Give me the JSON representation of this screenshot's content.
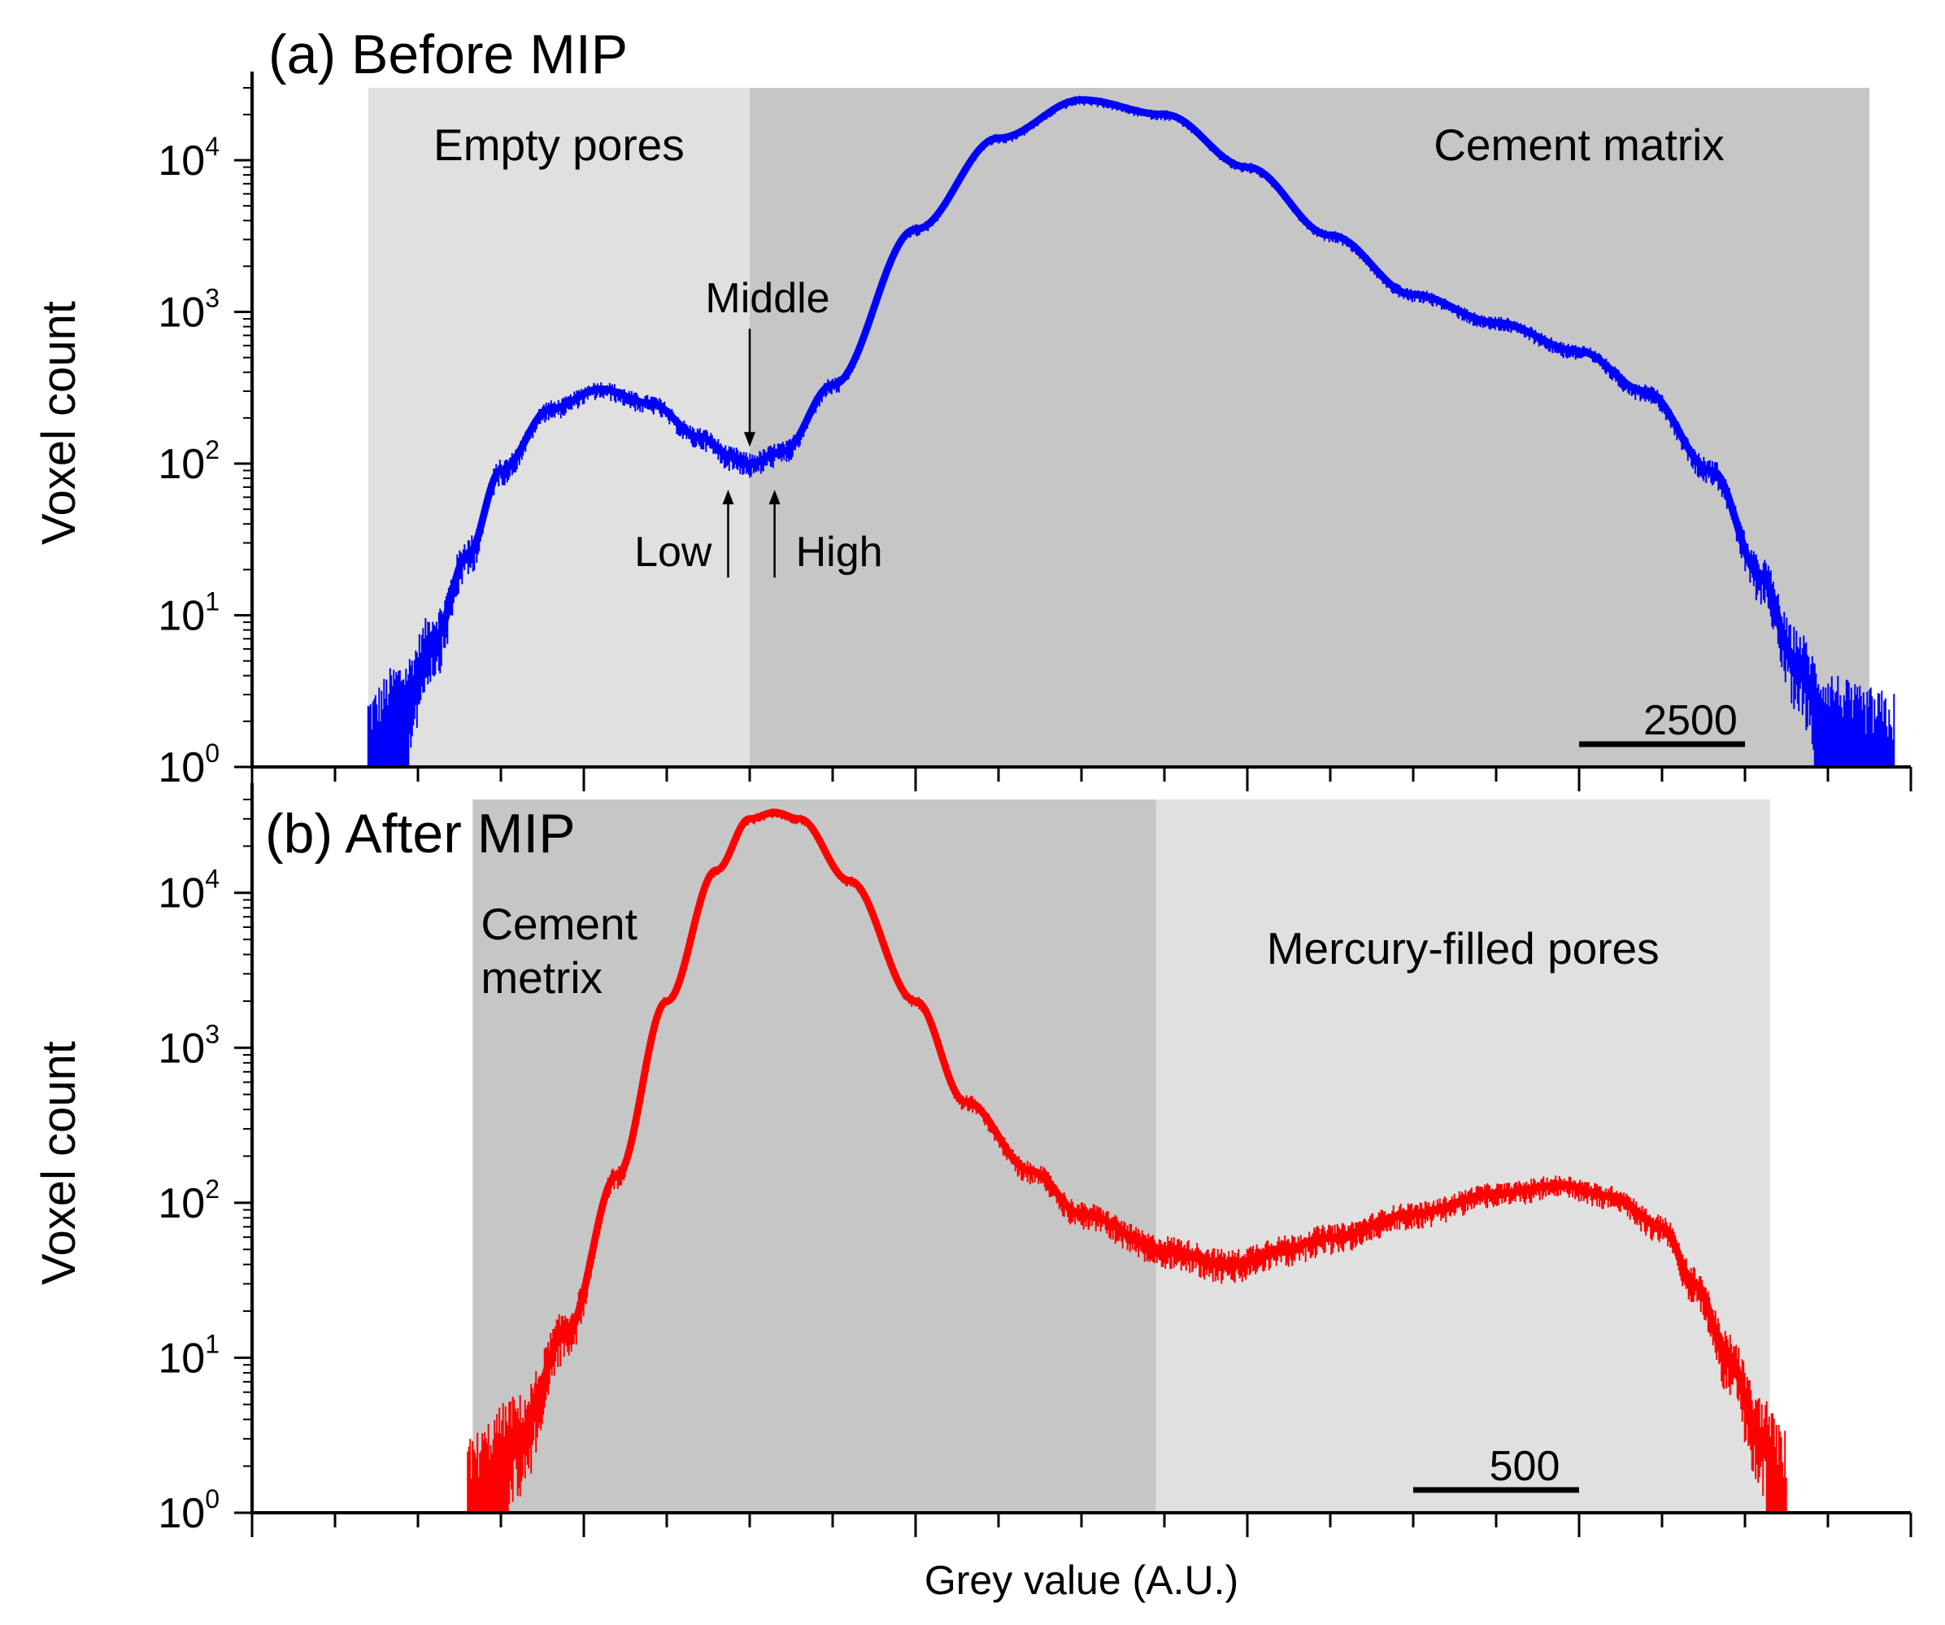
{
  "chart_data": {
    "xlabel": "Grey value (A.U.)",
    "panels": [
      {
        "id": "a",
        "type": "line",
        "title": "(a) Before MIP",
        "ylabel": "Voxel count",
        "yscale": "log",
        "ylim": [
          1,
          30000
        ],
        "xlim": [
          0,
          10
        ],
        "y_ticks": [
          {
            "value": 1,
            "base": "10",
            "exp": "0"
          },
          {
            "value": 10,
            "base": "10",
            "exp": "1"
          },
          {
            "value": 100,
            "base": "10",
            "exp": "2"
          },
          {
            "value": 1000,
            "base": "10",
            "exp": "3"
          },
          {
            "value": 10000,
            "base": "10",
            "exp": "4"
          }
        ],
        "x_ticks": [
          0,
          0.5,
          1,
          1.5,
          2,
          2.5,
          3,
          3.5,
          4,
          4.5,
          5,
          5.5,
          6,
          6.5,
          7,
          7.5,
          8,
          8.5,
          9,
          9.5,
          10
        ],
        "x_major_ticks": [
          0,
          2,
          4,
          6,
          8,
          10
        ],
        "series_color": "#0000ff",
        "series": [
          {
            "name": "Before MIP",
            "x": [
              0.7,
              0.9,
              1.1,
              1.3,
              1.5,
              1.8,
              2.1,
              2.4,
              2.7,
              2.9,
              3.0,
              3.2,
              3.5,
              4.0,
              4.5,
              5.0,
              5.5,
              6.0,
              6.5,
              7.0,
              7.5,
              8.0,
              8.4,
              8.8,
              9.1,
              9.3,
              9.5,
              9.7,
              9.9
            ],
            "y": [
              1.2,
              2.5,
              7,
              25,
              90,
              230,
              310,
              250,
              150,
              110,
              100,
              120,
              330,
              3500,
              14000,
              25000,
              20000,
              9000,
              3200,
              1300,
              850,
              550,
              300,
              90,
              18,
              5,
              2,
              1.3,
              1.1
            ]
          }
        ],
        "regions": [
          {
            "label": "Empty pores",
            "x0": 0.7,
            "x1": 3.0,
            "color": "#e0e0e0"
          },
          {
            "label": "Cement matrix",
            "x0": 3.0,
            "x1": 9.75,
            "color": "#c6c6c6"
          }
        ],
        "annotations": [
          {
            "text": "Middle",
            "x": 3.0,
            "direction": "down"
          },
          {
            "text": "Low",
            "x": 2.87,
            "direction": "up"
          },
          {
            "text": "High",
            "x": 3.15,
            "direction": "up"
          }
        ],
        "scale_bar": {
          "label": "2500",
          "x0": 8.0,
          "x1": 9.0
        }
      },
      {
        "id": "b",
        "type": "line",
        "title": "(b) After MIP",
        "ylabel": "Voxel count",
        "yscale": "log",
        "ylim": [
          1,
          40000
        ],
        "xlim": [
          0,
          10
        ],
        "y_ticks": [
          {
            "value": 1,
            "base": "10",
            "exp": "0"
          },
          {
            "value": 10,
            "base": "10",
            "exp": "1"
          },
          {
            "value": 100,
            "base": "10",
            "exp": "2"
          },
          {
            "value": 1000,
            "base": "10",
            "exp": "3"
          },
          {
            "value": 10000,
            "base": "10",
            "exp": "4"
          }
        ],
        "x_ticks": [
          0,
          0.5,
          1,
          1.5,
          2,
          2.5,
          3,
          3.5,
          4,
          4.5,
          5,
          5.5,
          6,
          6.5,
          7,
          7.5,
          8,
          8.5,
          9,
          9.5,
          10
        ],
        "x_major_ticks": [
          0,
          2,
          4,
          6,
          8,
          10
        ],
        "series_color": "#ff0000",
        "series": [
          {
            "name": "After MIP",
            "x": [
              1.3,
              1.6,
              1.9,
              2.2,
              2.5,
              2.8,
              3.0,
              3.15,
              3.3,
              3.6,
              4.0,
              4.3,
              4.7,
              5.0,
              5.5,
              5.9,
              6.2,
              6.5,
              7.0,
              7.5,
              7.9,
              8.2,
              8.5,
              8.7,
              8.9,
              9.1,
              9.25
            ],
            "y": [
              1.2,
              3,
              15,
              150,
              2000,
              14000,
              30000,
              33000,
              30000,
              12000,
              2000,
              450,
              160,
              85,
              50,
              40,
              50,
              60,
              85,
              115,
              130,
              110,
              70,
              30,
              10,
              3,
              1.3
            ]
          }
        ],
        "regions": [
          {
            "label": "Cement\nmetrix",
            "x0": 1.33,
            "x1": 5.45,
            "color": "#c6c6c6"
          },
          {
            "label": "Mercury-filled pores",
            "x0": 5.45,
            "x1": 9.15,
            "color": "#e0e0e0"
          }
        ],
        "scale_bar": {
          "label": "500",
          "x0": 7.0,
          "x1": 8.0
        }
      }
    ]
  }
}
